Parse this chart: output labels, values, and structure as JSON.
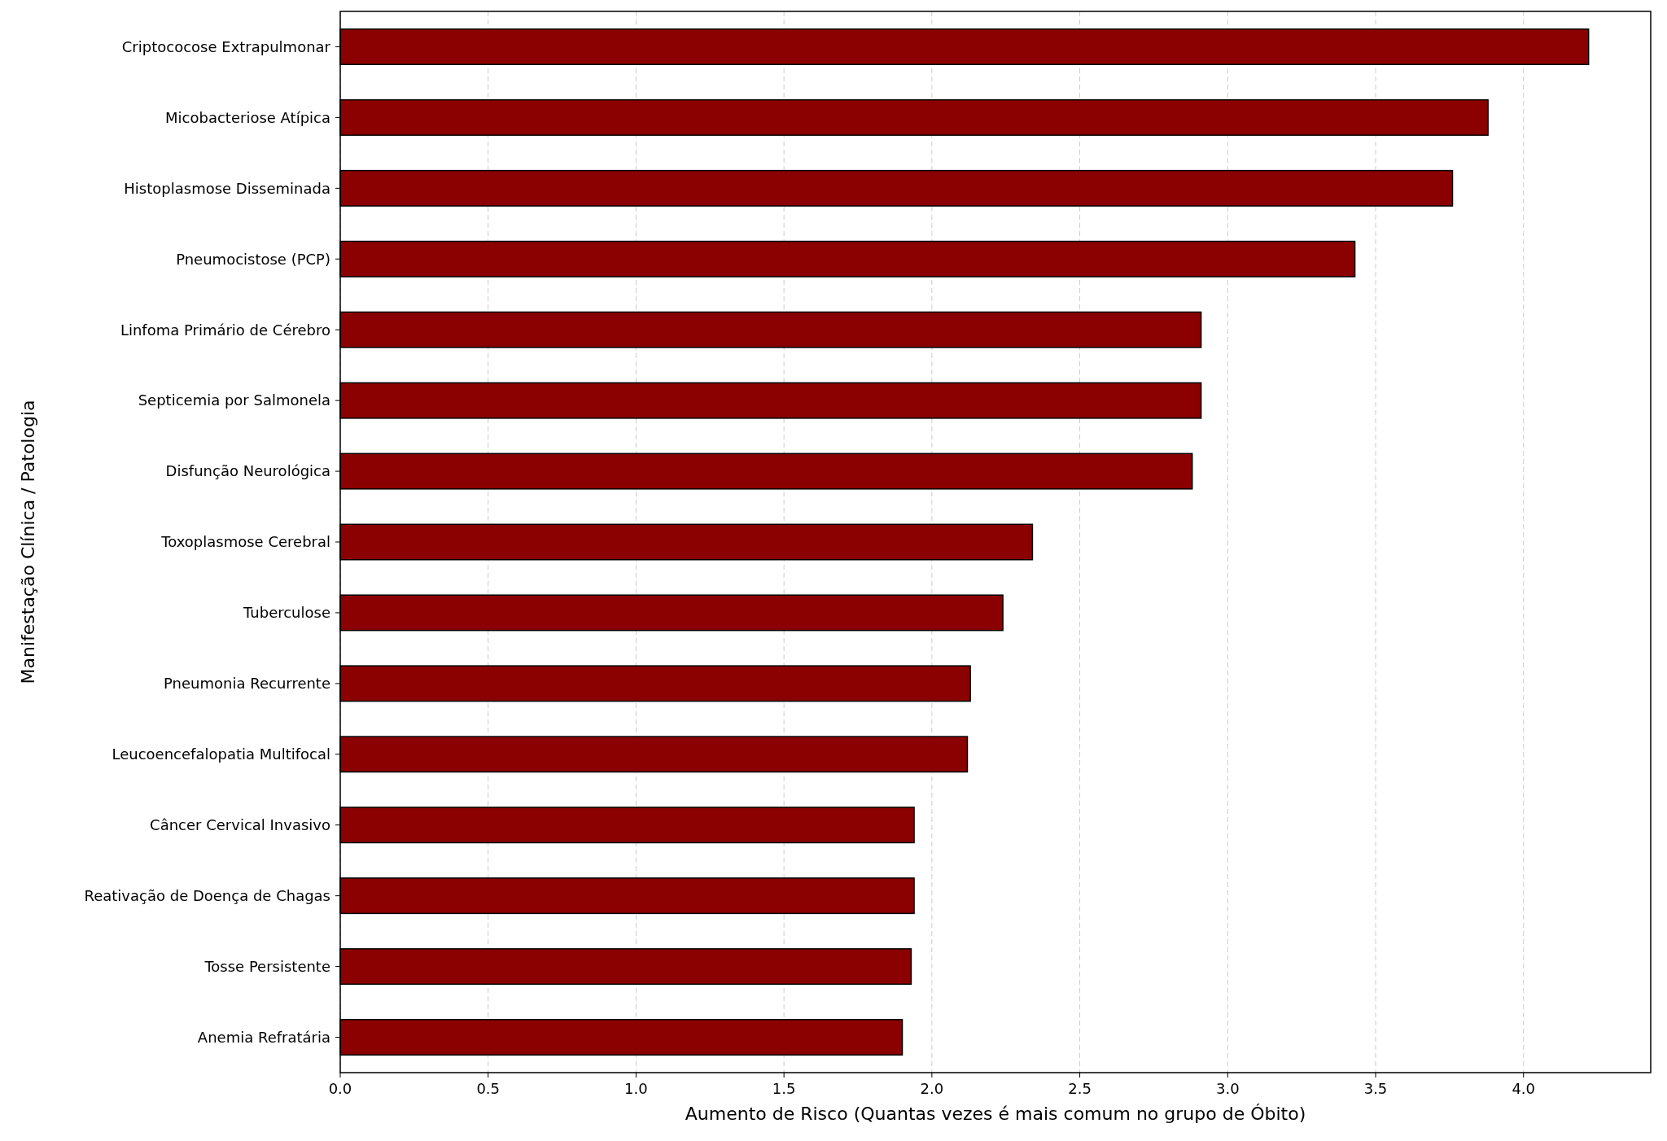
{
  "chart_data": {
    "type": "bar",
    "orientation": "horizontal",
    "xlabel": "Aumento de Risco (Quantas vezes é mais comum no grupo de Óbito)",
    "ylabel": "Manifestação Clínica / Patologia",
    "categories": [
      "Criptococose Extrapulmonar",
      "Micobacteriose Atípica",
      "Histoplasmose Disseminada",
      "Pneumocistose (PCP)",
      "Linfoma Primário de Cérebro",
      "Septicemia por Salmonela",
      "Disfunção Neurológica",
      "Toxoplasmose Cerebral",
      "Tuberculose",
      "Pneumonia Recurrente",
      "Leucoencefalopatia Multifocal",
      "Câncer Cervical Invasivo",
      "Reativação de Doença de Chagas",
      "Tosse Persistente",
      "Anemia Refratária"
    ],
    "values": [
      4.22,
      3.88,
      3.76,
      3.43,
      2.91,
      2.91,
      2.88,
      2.34,
      2.24,
      2.13,
      2.12,
      1.94,
      1.94,
      1.93,
      1.9
    ],
    "color": "#8b0000",
    "xlim": [
      0,
      4.43
    ],
    "xticks": [
      {
        "value": 0,
        "label": "0.0"
      },
      0.5,
      {
        "value": 1,
        "label": "1.0"
      },
      1.5,
      {
        "value": 2,
        "label": "2.0"
      },
      2.5,
      {
        "value": 3,
        "label": "3.0"
      },
      3.5,
      {
        "value": 4,
        "label": "4.0"
      }
    ],
    "grid": "x"
  }
}
